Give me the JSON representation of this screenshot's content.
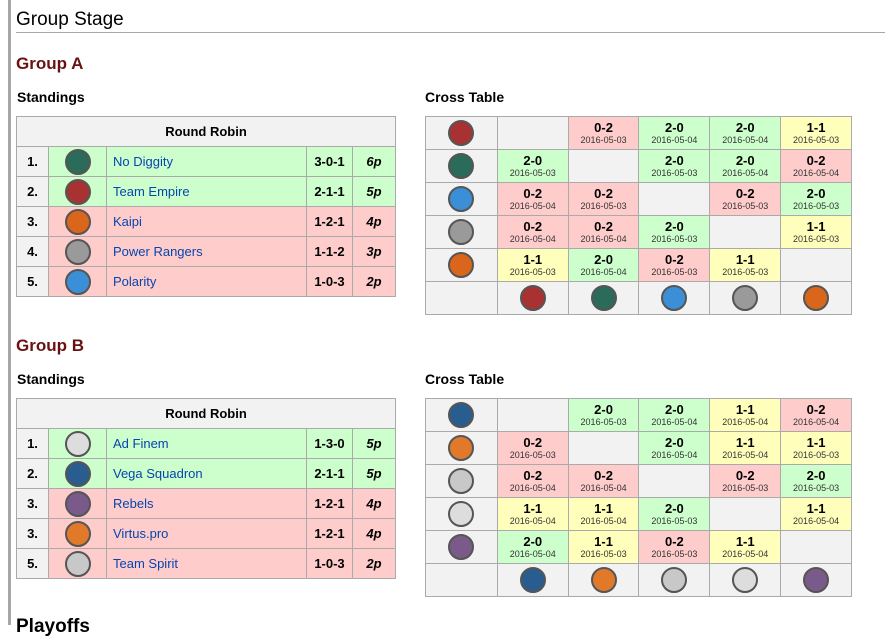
{
  "title": "Group Stage",
  "next_section": "Playoffs",
  "standings_label": "Standings",
  "cross_label": "Cross Table",
  "round_robin": "Round Robin",
  "colors": {
    "win": "#ccffcc",
    "loss": "#ffcccc",
    "draw": "#ffffbb",
    "header": "#f2f2f2",
    "group_title": "#6a1212",
    "link": "#0645ad"
  },
  "teams": {
    "No Diggity": {
      "logo": "no-diggity-logo",
      "color": "#2a6b5a"
    },
    "Team Empire": {
      "logo": "team-empire-logo",
      "color": "#a83232"
    },
    "Kaipi": {
      "logo": "kaipi-logo",
      "color": "#d9661a"
    },
    "Power Rangers": {
      "logo": "power-rangers-logo",
      "color": "#9a9a9a"
    },
    "Polarity": {
      "logo": "polarity-logo",
      "color": "#3a8fd6"
    },
    "Ad Finem": {
      "logo": "ad-finem-logo",
      "color": "#dddddd"
    },
    "Vega Squadron": {
      "logo": "vega-squadron-logo",
      "color": "#2a5d8f"
    },
    "Rebels": {
      "logo": "rebels-logo",
      "color": "#7a5a8a"
    },
    "Virtus.pro": {
      "logo": "virtus-pro-logo",
      "color": "#e07a2a"
    },
    "Team Spirit": {
      "logo": "team-spirit-logo",
      "color": "#c8c8c8"
    }
  },
  "groups": [
    {
      "name": "Group A",
      "standings": [
        {
          "rank": "1.",
          "team": "No Diggity",
          "record": "3-0-1",
          "points": "6p",
          "status": "win"
        },
        {
          "rank": "2.",
          "team": "Team Empire",
          "record": "2-1-1",
          "points": "5p",
          "status": "win"
        },
        {
          "rank": "3.",
          "team": "Kaipi",
          "record": "1-2-1",
          "points": "4p",
          "status": "loss"
        },
        {
          "rank": "4.",
          "team": "Power Rangers",
          "record": "1-1-2",
          "points": "3p",
          "status": "loss"
        },
        {
          "rank": "5.",
          "team": "Polarity",
          "record": "1-0-3",
          "points": "2p",
          "status": "loss"
        }
      ],
      "cross_teams": [
        "Team Empire",
        "No Diggity",
        "Polarity",
        "Power Rangers",
        "Kaipi"
      ],
      "cross": [
        [
          null,
          [
            "0-2",
            "2016-05-03"
          ],
          [
            "2-0",
            "2016-05-04"
          ],
          [
            "2-0",
            "2016-05-04"
          ],
          [
            "1-1",
            "2016-05-03"
          ]
        ],
        [
          [
            "2-0",
            "2016-05-03"
          ],
          null,
          [
            "2-0",
            "2016-05-03"
          ],
          [
            "2-0",
            "2016-05-04"
          ],
          [
            "0-2",
            "2016-05-04"
          ]
        ],
        [
          [
            "0-2",
            "2016-05-04"
          ],
          [
            "0-2",
            "2016-05-03"
          ],
          null,
          [
            "0-2",
            "2016-05-03"
          ],
          [
            "2-0",
            "2016-05-03"
          ]
        ],
        [
          [
            "0-2",
            "2016-05-04"
          ],
          [
            "0-2",
            "2016-05-04"
          ],
          [
            "2-0",
            "2016-05-03"
          ],
          null,
          [
            "1-1",
            "2016-05-03"
          ]
        ],
        [
          [
            "1-1",
            "2016-05-03"
          ],
          [
            "2-0",
            "2016-05-04"
          ],
          [
            "0-2",
            "2016-05-03"
          ],
          [
            "1-1",
            "2016-05-03"
          ],
          null
        ]
      ]
    },
    {
      "name": "Group B",
      "standings": [
        {
          "rank": "1.",
          "team": "Ad Finem",
          "record": "1-3-0",
          "points": "5p",
          "status": "win"
        },
        {
          "rank": "2.",
          "team": "Vega Squadron",
          "record": "2-1-1",
          "points": "5p",
          "status": "win"
        },
        {
          "rank": "3.",
          "team": "Rebels",
          "record": "1-2-1",
          "points": "4p",
          "status": "loss"
        },
        {
          "rank": "3.",
          "team": "Virtus.pro",
          "record": "1-2-1",
          "points": "4p",
          "status": "loss"
        },
        {
          "rank": "5.",
          "team": "Team Spirit",
          "record": "1-0-3",
          "points": "2p",
          "status": "loss"
        }
      ],
      "cross_teams": [
        "Vega Squadron",
        "Virtus.pro",
        "Team Spirit",
        "Ad Finem",
        "Rebels"
      ],
      "cross": [
        [
          null,
          [
            "2-0",
            "2016-05-03"
          ],
          [
            "2-0",
            "2016-05-04"
          ],
          [
            "1-1",
            "2016-05-04"
          ],
          [
            "0-2",
            "2016-05-04"
          ]
        ],
        [
          [
            "0-2",
            "2016-05-03"
          ],
          null,
          [
            "2-0",
            "2016-05-04"
          ],
          [
            "1-1",
            "2016-05-04"
          ],
          [
            "1-1",
            "2016-05-03"
          ]
        ],
        [
          [
            "0-2",
            "2016-05-04"
          ],
          [
            "0-2",
            "2016-05-04"
          ],
          null,
          [
            "0-2",
            "2016-05-03"
          ],
          [
            "2-0",
            "2016-05-03"
          ]
        ],
        [
          [
            "1-1",
            "2016-05-04"
          ],
          [
            "1-1",
            "2016-05-04"
          ],
          [
            "2-0",
            "2016-05-03"
          ],
          null,
          [
            "1-1",
            "2016-05-04"
          ]
        ],
        [
          [
            "2-0",
            "2016-05-04"
          ],
          [
            "1-1",
            "2016-05-03"
          ],
          [
            "0-2",
            "2016-05-03"
          ],
          [
            "1-1",
            "2016-05-04"
          ],
          null
        ]
      ]
    }
  ]
}
